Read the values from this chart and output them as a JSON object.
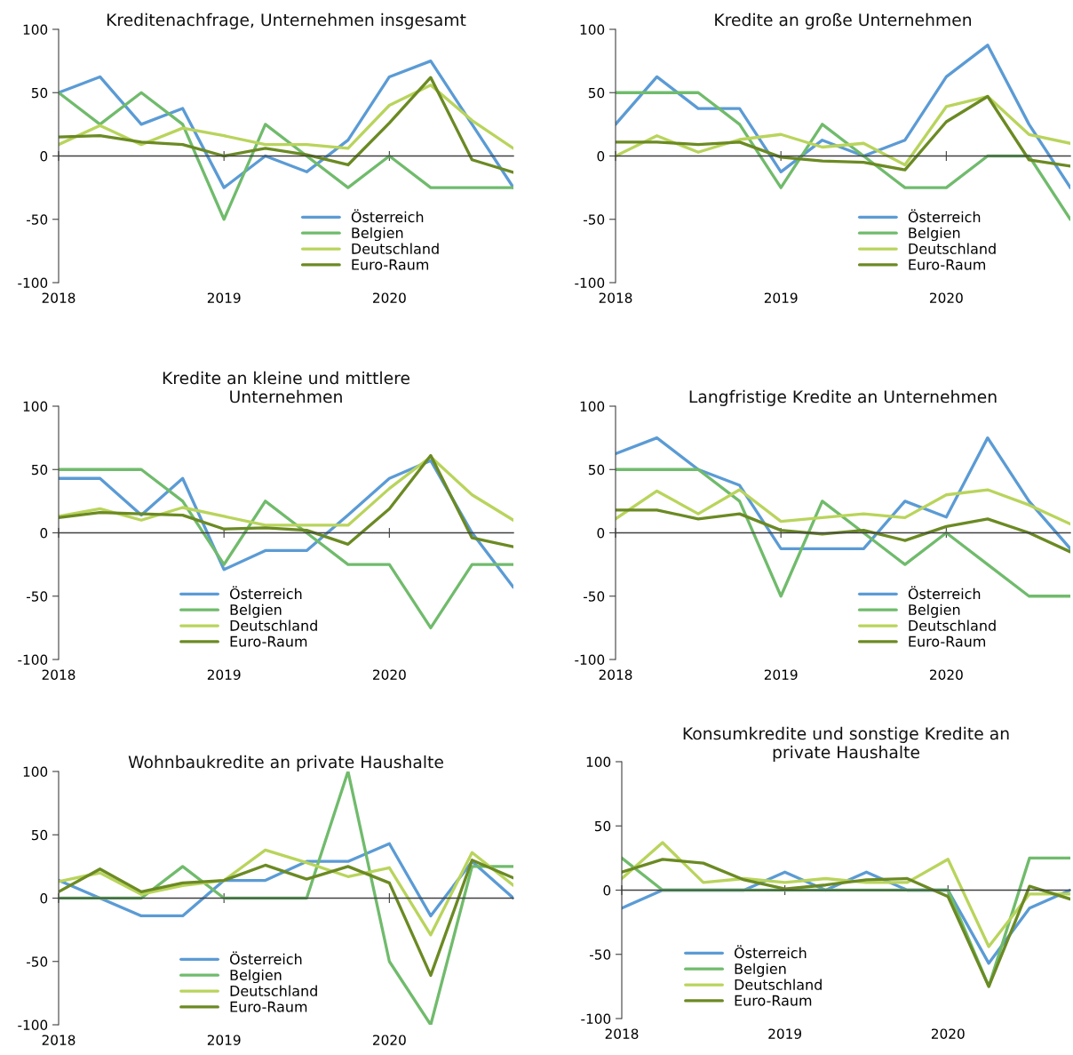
{
  "chart_data": [
    {
      "type": "line",
      "title": "Kreditenachfrage, Unternehmen insgesamt",
      "categories": [
        "2018",
        null,
        null,
        null,
        "2019",
        null,
        null,
        null,
        "2020",
        null,
        null,
        null
      ],
      "ylim": [
        -100,
        100
      ],
      "yticks": [
        -100,
        -50,
        0,
        50,
        100
      ],
      "legend": "bottom right",
      "marker": "none",
      "line_style": "solid",
      "series": [
        {
          "name": "Österreich",
          "color": "#5b9bd5",
          "values": [
            50,
            62.5,
            25,
            37.5,
            -25,
            0,
            -12.5,
            12.5,
            62.5,
            75,
            25,
            -25
          ]
        },
        {
          "name": "Belgien",
          "color": "#70bb6c",
          "values": [
            50,
            25,
            50,
            25,
            -50,
            25,
            0,
            -25,
            0,
            -25,
            -25,
            -25
          ]
        },
        {
          "name": "Deutschland",
          "color": "#b9d45c",
          "values": [
            9,
            24,
            9,
            22,
            16,
            9,
            9,
            6,
            40,
            56,
            28,
            6
          ]
        },
        {
          "name": "Euro-Raum",
          "color": "#6b8a23",
          "values": [
            15,
            16,
            11,
            9,
            0,
            6,
            1,
            -7,
            26,
            62,
            -3,
            -13
          ]
        }
      ]
    },
    {
      "type": "line",
      "title": "Kredite an große Unternehmen",
      "categories": [
        "2018",
        null,
        null,
        null,
        "2019",
        null,
        null,
        null,
        "2020",
        null,
        null,
        null
      ],
      "ylim": [
        -100,
        100
      ],
      "yticks": [
        -100,
        -50,
        0,
        50,
        100
      ],
      "legend": "bottom right",
      "marker": "none",
      "line_style": "solid",
      "series": [
        {
          "name": "Österreich",
          "color": "#5b9bd5",
          "values": [
            25,
            62.5,
            37.5,
            37.5,
            -12.5,
            12.5,
            0,
            12.5,
            62.5,
            87.5,
            25,
            -25
          ]
        },
        {
          "name": "Belgien",
          "color": "#70bb6c",
          "values": [
            50,
            50,
            50,
            25,
            -25,
            25,
            0,
            -25,
            -25,
            0,
            0,
            -50
          ]
        },
        {
          "name": "Deutschland",
          "color": "#b9d45c",
          "values": [
            0,
            16,
            3,
            13,
            17,
            7,
            10,
            -7,
            39,
            47,
            17,
            10
          ]
        },
        {
          "name": "Euro-Raum",
          "color": "#6b8a23",
          "values": [
            11,
            11,
            9,
            11,
            -1,
            -4,
            -5,
            -11,
            27,
            47,
            -3,
            -8
          ]
        }
      ]
    },
    {
      "type": "line",
      "title": "Kredite an kleine und mittlere\nUnternehmen",
      "categories": [
        "2018",
        null,
        null,
        null,
        "2019",
        null,
        null,
        null,
        "2020",
        null,
        null,
        null
      ],
      "ylim": [
        -100,
        100
      ],
      "yticks": [
        -100,
        -50,
        0,
        50,
        100
      ],
      "legend": "bottom",
      "marker": "none",
      "line_style": "solid",
      "series": [
        {
          "name": "Österreich",
          "color": "#5b9bd5",
          "values": [
            43,
            43,
            14,
            43,
            -29,
            -14,
            -14,
            14,
            43,
            57,
            0,
            -43
          ]
        },
        {
          "name": "Belgien",
          "color": "#70bb6c",
          "values": [
            50,
            50,
            50,
            25,
            -25,
            25,
            0,
            -25,
            -25,
            -75,
            -25,
            -25
          ]
        },
        {
          "name": "Deutschland",
          "color": "#b9d45c",
          "values": [
            13,
            19,
            10,
            20,
            13,
            6,
            6,
            6,
            35,
            60,
            30,
            10
          ]
        },
        {
          "name": "Euro-Raum",
          "color": "#6b8a23",
          "values": [
            12,
            16,
            15,
            14,
            3,
            4,
            2,
            -9,
            19,
            61,
            -4,
            -11
          ]
        }
      ]
    },
    {
      "type": "line",
      "title": "Langfristige Kredite an Unternehmen",
      "categories": [
        "2018",
        null,
        null,
        null,
        "2019",
        null,
        null,
        null,
        "2020",
        null,
        null,
        null
      ],
      "ylim": [
        -100,
        100
      ],
      "yticks": [
        -100,
        -50,
        0,
        50,
        100
      ],
      "legend": "bottom right",
      "marker": "none",
      "line_style": "solid",
      "series": [
        {
          "name": "Österreich",
          "color": "#5b9bd5",
          "values": [
            62.5,
            75,
            50,
            37.5,
            -12.5,
            -12.5,
            -12.5,
            25,
            12.5,
            75,
            25,
            -12.5
          ]
        },
        {
          "name": "Belgien",
          "color": "#70bb6c",
          "values": [
            50,
            50,
            50,
            25,
            -50,
            25,
            0,
            -25,
            0,
            -25,
            -50,
            -50
          ]
        },
        {
          "name": "Deutschland",
          "color": "#b9d45c",
          "values": [
            11,
            33,
            15,
            34,
            9,
            12,
            15,
            12,
            30,
            34,
            22,
            7
          ]
        },
        {
          "name": "Euro-Raum",
          "color": "#6b8a23",
          "values": [
            18,
            18,
            11,
            15,
            2,
            -1,
            2,
            -6,
            5,
            11,
            0,
            -15
          ]
        }
      ]
    },
    {
      "type": "line",
      "title": "Wohnbaukredite an private Haushalte",
      "categories": [
        "2018",
        null,
        null,
        null,
        "2019",
        null,
        null,
        null,
        "2020",
        null,
        null,
        null
      ],
      "ylim": [
        -100,
        100
      ],
      "yticks": [
        -100,
        -50,
        0,
        50,
        100
      ],
      "legend": "bottom",
      "marker": "none",
      "line_style": "solid",
      "series": [
        {
          "name": "Österreich",
          "color": "#5b9bd5",
          "values": [
            14,
            0,
            -14,
            -14,
            14,
            14,
            29,
            29,
            43,
            -14,
            29,
            0
          ]
        },
        {
          "name": "Belgien",
          "color": "#70bb6c",
          "values": [
            0,
            0,
            0,
            25,
            0,
            0,
            0,
            100,
            -50,
            -100,
            25,
            25
          ]
        },
        {
          "name": "Deutschland",
          "color": "#b9d45c",
          "values": [
            13,
            20,
            3,
            10,
            14,
            38,
            28,
            17,
            24,
            -29,
            36,
            10
          ]
        },
        {
          "name": "Euro-Raum",
          "color": "#6b8a23",
          "values": [
            5,
            23,
            5,
            12,
            14,
            26,
            15,
            25,
            12,
            -61,
            30,
            16
          ]
        }
      ]
    },
    {
      "type": "line",
      "title": "Konsumkredite und sonstige Kredite an\nprivate Haushalte",
      "categories": [
        "2018",
        null,
        null,
        null,
        "2019",
        null,
        null,
        null,
        "2020",
        null,
        null,
        null
      ],
      "ylim": [
        -100,
        100
      ],
      "yticks": [
        -100,
        -50,
        0,
        50,
        100
      ],
      "legend": "bottom left",
      "marker": "none",
      "line_style": "solid",
      "series": [
        {
          "name": "Österreich",
          "color": "#5b9bd5",
          "values": [
            -14,
            0,
            0,
            0,
            14,
            0,
            14,
            0,
            0,
            -57,
            -14,
            0
          ]
        },
        {
          "name": "Belgien",
          "color": "#70bb6c",
          "values": [
            25,
            0,
            0,
            0,
            0,
            0,
            0,
            0,
            0,
            -75,
            25,
            25
          ]
        },
        {
          "name": "Deutschland",
          "color": "#b9d45c",
          "values": [
            9,
            37,
            6,
            9,
            6,
            9,
            6,
            6,
            24,
            -44,
            -3,
            -3
          ]
        },
        {
          "name": "Euro-Raum",
          "color": "#6b8a23",
          "values": [
            14,
            24,
            21,
            8,
            1,
            4,
            8,
            9,
            -5,
            -75,
            3,
            -7
          ]
        }
      ]
    }
  ]
}
